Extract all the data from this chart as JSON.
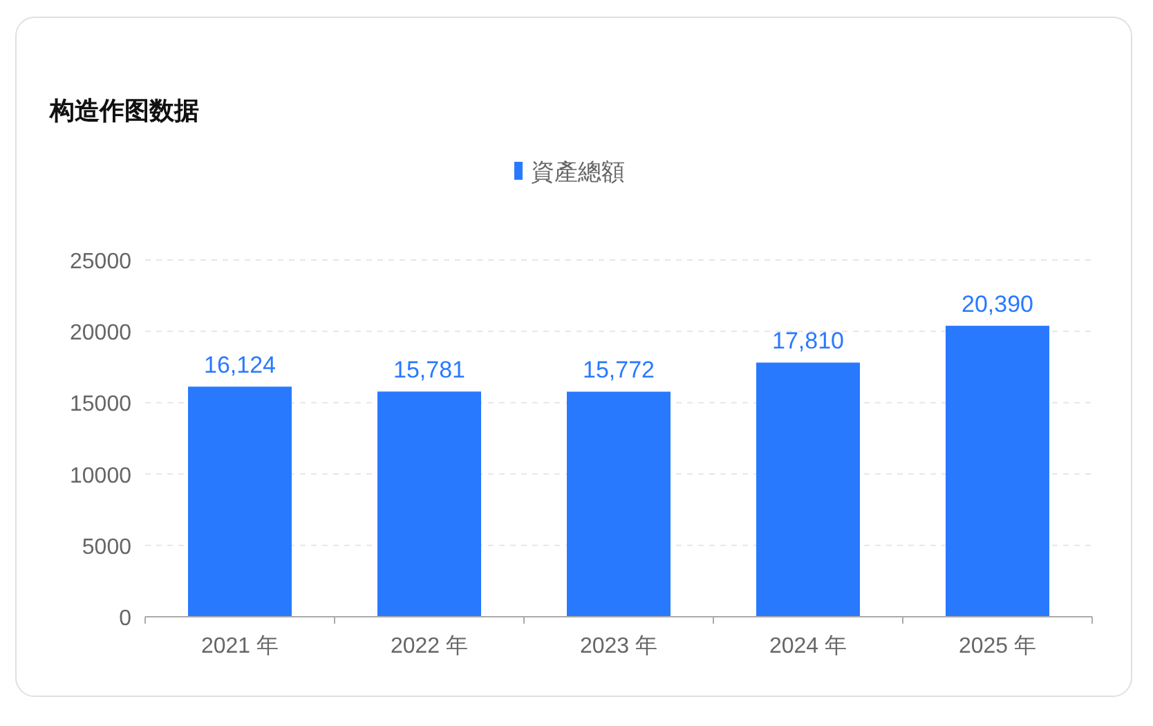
{
  "chart_data": {
    "type": "bar",
    "title": "构造作图数据",
    "categories": [
      "2021 年",
      "2022 年",
      "2023 年",
      "2024 年",
      "2025 年"
    ],
    "series": [
      {
        "name": "資產總額",
        "color": "#2979ff",
        "values": [
          16124,
          15781,
          15772,
          17810,
          20390
        ],
        "value_labels": [
          "16,124",
          "15,781",
          "15,772",
          "17,810",
          "20,390"
        ]
      }
    ],
    "ylim": [
      0,
      25000
    ],
    "yticks": [
      0,
      5000,
      10000,
      15000,
      20000,
      25000
    ],
    "grid": "y",
    "legend": "top"
  }
}
